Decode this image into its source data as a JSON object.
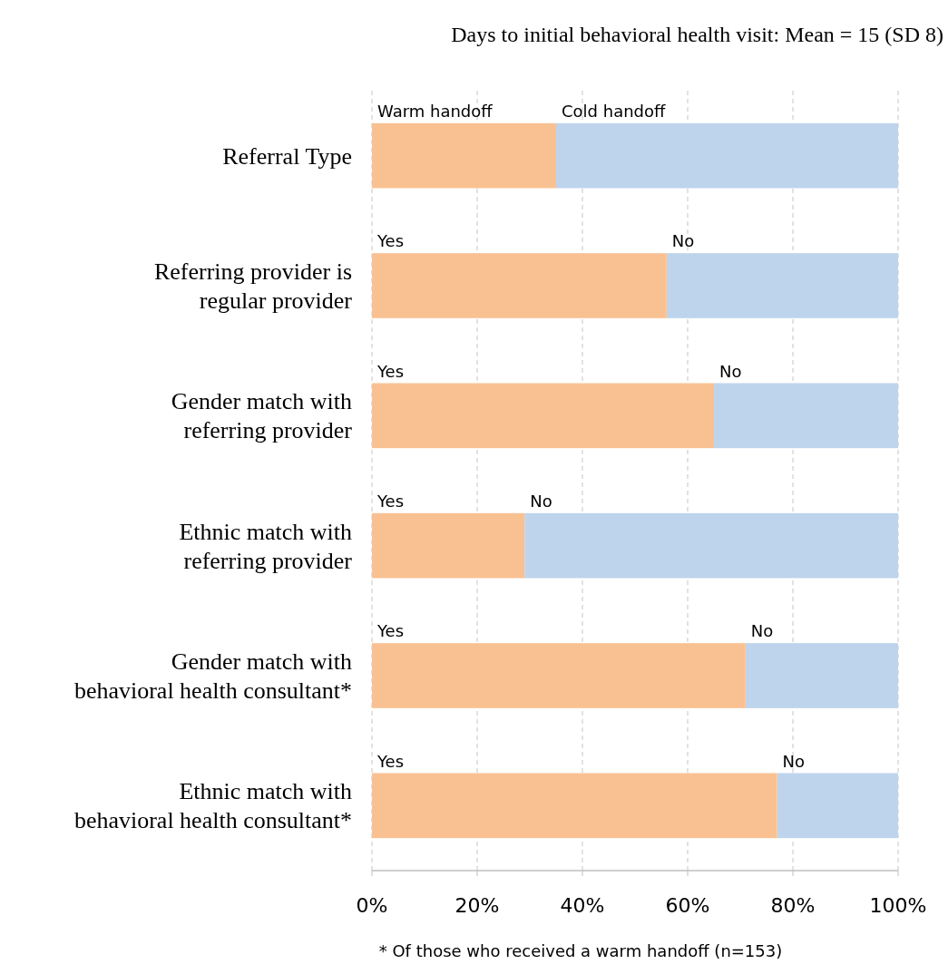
{
  "chart_data": {
    "type": "bar",
    "orientation": "horizontal",
    "stacked": true,
    "title": "Days to initial behavioral health visit: Mean = 15 (SD 8)",
    "categories": [
      "Referral Type",
      "Referring provider is regular provider",
      "Gender match with referring provider",
      "Ethnic match with referring provider",
      "Gender match with behavioral health consultant*",
      "Ethnic match with behavioral health consultant*"
    ],
    "series": [
      {
        "color": "#f9c192",
        "values": [
          35,
          56,
          65,
          29,
          71,
          77
        ]
      },
      {
        "color": "#bdd4ec",
        "values": [
          65,
          44,
          35,
          71,
          29,
          23
        ]
      }
    ],
    "xlim": [
      0,
      100
    ],
    "xticks": [
      {
        "value": 0,
        "label": "0%"
      },
      {
        "value": 20,
        "label": "20%"
      },
      {
        "value": 40,
        "label": "40%"
      },
      {
        "value": 60,
        "label": "60%"
      },
      {
        "value": 80,
        "label": "80%"
      },
      {
        "value": 100,
        "label": "100%"
      }
    ],
    "grid": "x",
    "annotations": [
      {
        "text": "Warm handoff",
        "x": 0,
        "y": "Referral Type"
      },
      {
        "text": "Cold handoff",
        "x": 35,
        "y": "Referral Type"
      },
      {
        "text": "Yes",
        "x": 0,
        "y": "Referring provider is regular provider"
      },
      {
        "text": "No",
        "x": 56,
        "y": "Referring provider is regular provider"
      },
      {
        "text": "Yes",
        "x": 0,
        "y": "Gender match with referring provider"
      },
      {
        "text": "No",
        "x": 65,
        "y": "Gender match with referring provider"
      },
      {
        "text": "Yes",
        "x": 0,
        "y": "Ethnic match with referring provider"
      },
      {
        "text": "No",
        "x": 29,
        "y": "Ethnic match with referring provider"
      },
      {
        "text": "Yes",
        "x": 0,
        "y": "Gender match with behavioral health consultant*"
      },
      {
        "text": "No",
        "x": 71,
        "y": "Gender match with behavioral health consultant*"
      },
      {
        "text": "Yes",
        "x": 0,
        "y": "Ethnic match with behavioral health consultant*"
      },
      {
        "text": "No",
        "x": 77,
        "y": "Ethnic match with behavioral health consultant*"
      },
      "* Of those who received a warm handoff (n=153)"
    ]
  }
}
